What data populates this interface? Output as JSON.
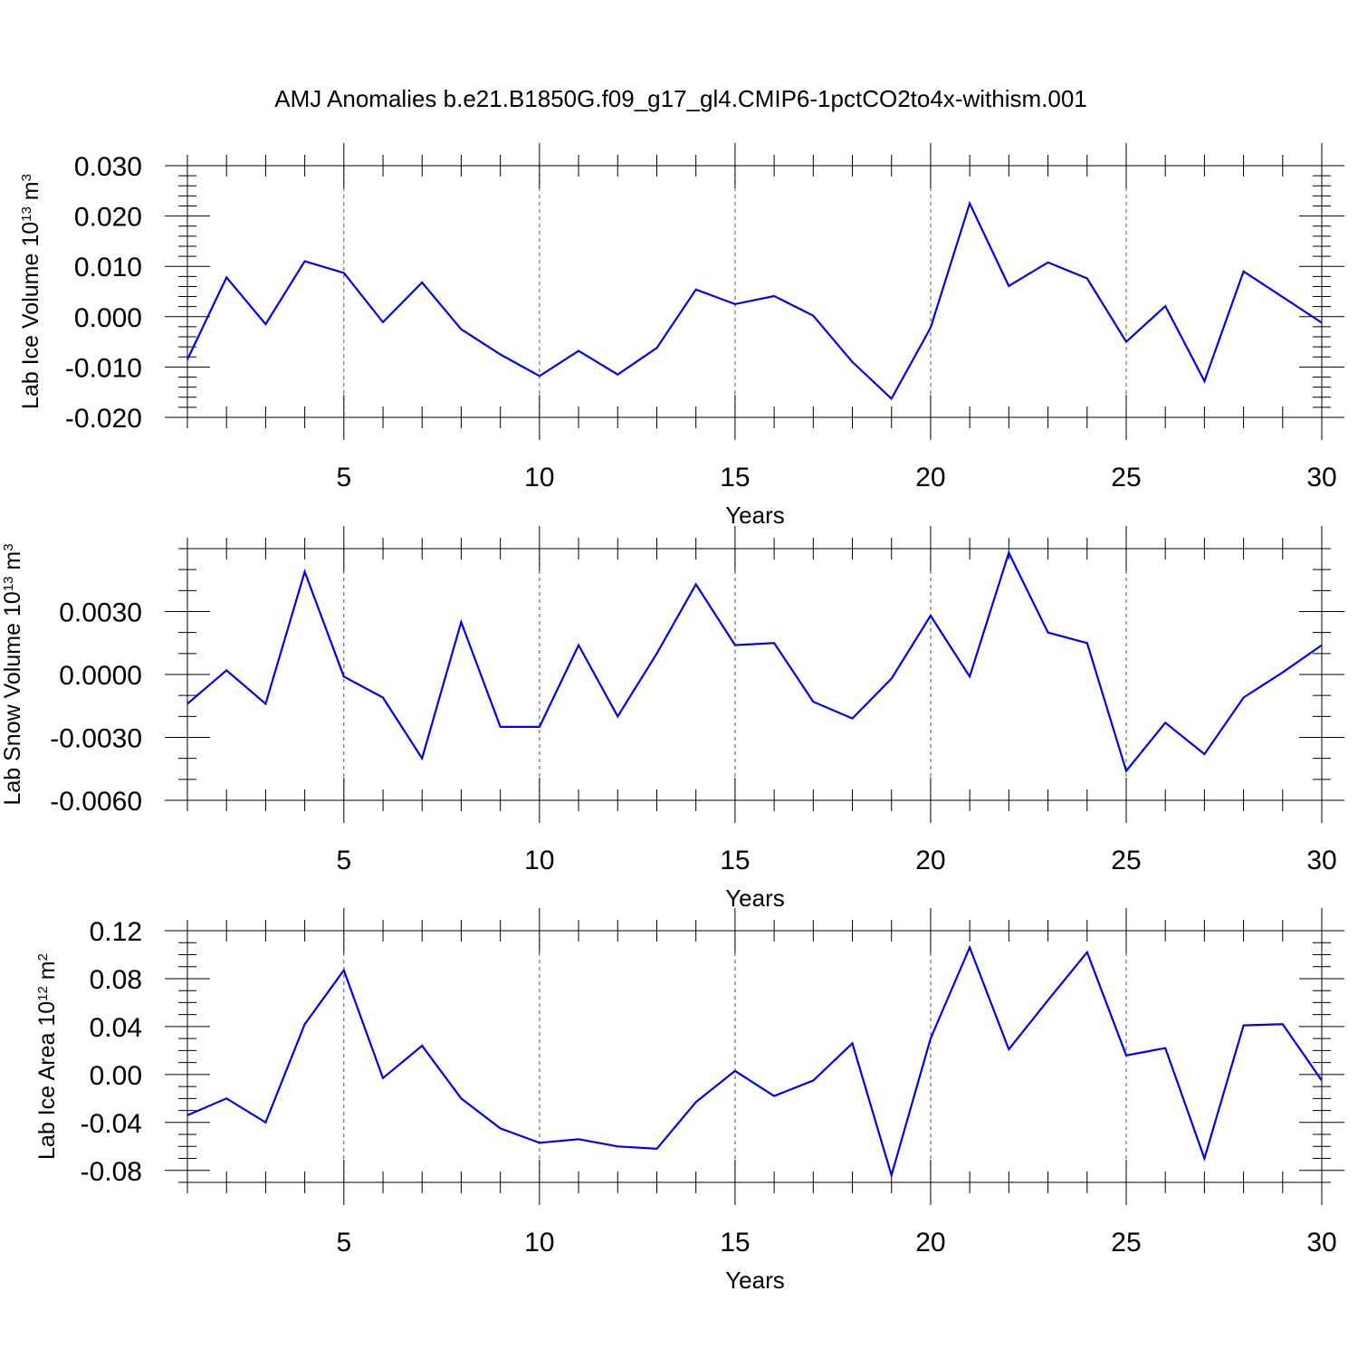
{
  "title": "AMJ Anomalies b.e21.B1850G.f09_g17_gl4.CMIP6-1pctCO2to4x-withism.001",
  "colors": {
    "line": "#0000ee",
    "axes": "#000000",
    "grid": "#555555"
  },
  "chart_data": [
    {
      "type": "line",
      "name": "lab-ice-volume",
      "ylabel": {
        "main": "Lab Ice Volume 10",
        "exp": "13",
        "mid": " m",
        "unit_exp": "3"
      },
      "xlabel": "Years",
      "xlim": [
        1,
        30
      ],
      "ylim": [
        -0.02,
        0.03
      ],
      "yticks": [
        -0.02,
        -0.01,
        0.0,
        0.01,
        0.02,
        0.03
      ],
      "ytick_labels": [
        "-0.020",
        "-0.010",
        "0.000",
        "0.010",
        "0.020",
        "0.030"
      ],
      "yminor_step": 0.002,
      "xticks": [
        5,
        10,
        15,
        20,
        25,
        30
      ],
      "xtick_labels": [
        "5",
        "10",
        "15",
        "20",
        "25",
        "30"
      ],
      "grid_x": [
        5,
        10,
        15,
        20,
        25
      ],
      "x": [
        1,
        2,
        3,
        4,
        5,
        6,
        7,
        8,
        9,
        10,
        11,
        12,
        13,
        14,
        15,
        16,
        17,
        18,
        19,
        20,
        21,
        22,
        23,
        24,
        25,
        26,
        27,
        28,
        29,
        30
      ],
      "series": [
        {
          "name": "AMJ anomaly",
          "values": [
            -0.0085,
            0.0078,
            -0.0015,
            0.011,
            0.0087,
            -0.0011,
            0.0068,
            -0.0025,
            -0.0075,
            -0.0118,
            -0.0068,
            -0.0115,
            -0.0062,
            0.0054,
            0.0025,
            0.0041,
            0.0002,
            -0.009,
            -0.0163,
            -0.0022,
            0.0225,
            0.0061,
            0.0108,
            0.0076,
            -0.005,
            0.0021,
            -0.0128,
            0.009,
            0.0039,
            -0.0012
          ]
        }
      ]
    },
    {
      "type": "line",
      "name": "lab-snow-volume",
      "ylabel": {
        "main": "Lab Snow Volume 10",
        "exp": "13",
        "mid": " m",
        "unit_exp": "3"
      },
      "xlabel": "Years",
      "xlim": [
        1,
        30
      ],
      "ylim": [
        -0.006,
        0.006
      ],
      "yticks": [
        -0.006,
        -0.003,
        0.0,
        0.003
      ],
      "ytick_labels": [
        "-0.0060",
        "-0.0030",
        "0.0000",
        "0.0030"
      ],
      "yminor_step": 0.001,
      "xticks": [
        5,
        10,
        15,
        20,
        25,
        30
      ],
      "xtick_labels": [
        "5",
        "10",
        "15",
        "20",
        "25",
        "30"
      ],
      "grid_x": [
        5,
        10,
        15,
        20,
        25
      ],
      "x": [
        1,
        2,
        3,
        4,
        5,
        6,
        7,
        8,
        9,
        10,
        11,
        12,
        13,
        14,
        15,
        16,
        17,
        18,
        19,
        20,
        21,
        22,
        23,
        24,
        25,
        26,
        27,
        28,
        29,
        30
      ],
      "series": [
        {
          "name": "AMJ anomaly",
          "values": [
            -0.0014,
            0.0002,
            -0.0014,
            0.0049,
            -0.0001,
            -0.0011,
            -0.004,
            0.0025,
            -0.0025,
            -0.0025,
            0.0014,
            -0.002,
            0.001,
            0.0043,
            0.0014,
            0.0015,
            -0.0013,
            -0.0021,
            -0.0002,
            0.0028,
            -0.0001,
            0.0058,
            0.002,
            0.0015,
            -0.0046,
            -0.0023,
            -0.0038,
            -0.0011,
            0.0001,
            0.0014
          ]
        }
      ]
    },
    {
      "type": "line",
      "name": "lab-ice-area",
      "ylabel": {
        "main": "Lab Ice Area 10",
        "exp": "12",
        "mid": " m",
        "unit_exp": "2"
      },
      "xlabel": "Years",
      "xlim": [
        1,
        30
      ],
      "ylim": [
        -0.09,
        0.12
      ],
      "yticks": [
        -0.08,
        -0.04,
        0.0,
        0.04,
        0.08,
        0.12
      ],
      "ytick_labels": [
        "-0.08",
        "-0.04",
        "0.00",
        "0.04",
        "0.08",
        "0.12"
      ],
      "yminor_step": 0.01,
      "xticks": [
        5,
        10,
        15,
        20,
        25,
        30
      ],
      "xtick_labels": [
        "5",
        "10",
        "15",
        "20",
        "25",
        "30"
      ],
      "grid_x": [
        5,
        10,
        15,
        20,
        25
      ],
      "x": [
        1,
        2,
        3,
        4,
        5,
        6,
        7,
        8,
        9,
        10,
        11,
        12,
        13,
        14,
        15,
        16,
        17,
        18,
        19,
        20,
        21,
        22,
        23,
        24,
        25,
        26,
        27,
        28,
        29,
        30
      ],
      "series": [
        {
          "name": "AMJ anomaly",
          "values": [
            -0.034,
            -0.02,
            -0.04,
            0.042,
            0.087,
            -0.003,
            0.024,
            -0.02,
            -0.045,
            -0.057,
            -0.054,
            -0.06,
            -0.062,
            -0.023,
            0.003,
            -0.018,
            -0.005,
            0.026,
            -0.084,
            0.03,
            0.106,
            0.021,
            0.062,
            0.102,
            0.016,
            0.022,
            -0.07,
            0.041,
            0.042,
            -0.005
          ]
        }
      ]
    }
  ]
}
